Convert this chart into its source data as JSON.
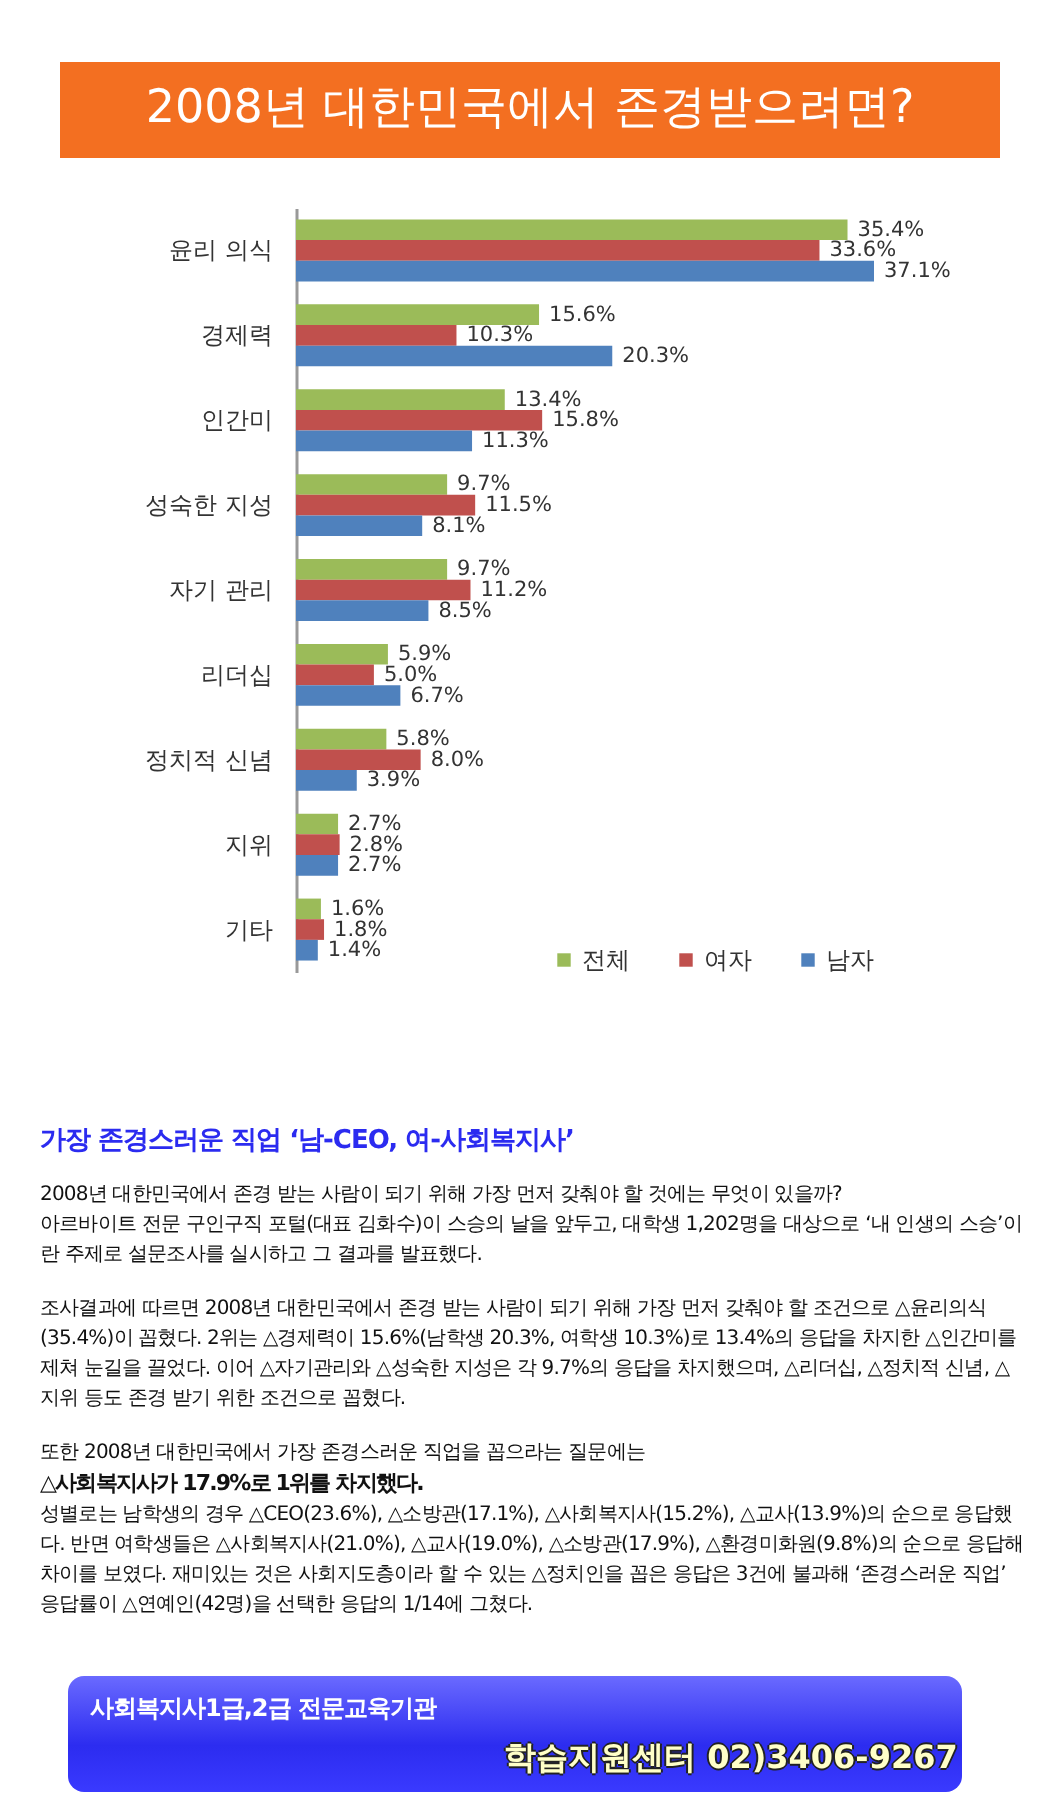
{
  "chart_data": {
    "type": "bar",
    "orientation": "horizontal",
    "title": "2008년 대한민국에서 존경받으려면?",
    "categories": [
      "윤리 의식",
      "경제력",
      "인간미",
      "성숙한 지성",
      "자기 관리",
      "리더십",
      "정치적 신념",
      "지위",
      "기타"
    ],
    "series": [
      {
        "name": "전체",
        "color": "#9bbb59",
        "values": [
          35.4,
          15.6,
          13.4,
          9.7,
          9.7,
          5.9,
          5.8,
          2.7,
          1.6
        ],
        "value_labels": [
          "35.4%",
          "15.6%",
          "13.4%",
          "9.7%",
          "9.7%",
          "5.9%",
          "5.8%",
          "2.7%",
          "1.6%"
        ]
      },
      {
        "name": "여자",
        "color": "#c0504d",
        "values": [
          33.6,
          10.3,
          15.8,
          11.5,
          11.2,
          5.0,
          8.0,
          2.8,
          1.8
        ],
        "value_labels": [
          "33.6%",
          "10.3%",
          "15.8%",
          "11.5%",
          "11.2%",
          "5.0%",
          "8.0%",
          "2.8%",
          "1.8%"
        ]
      },
      {
        "name": "남자",
        "color": "#4f81bd",
        "values": [
          37.1,
          20.3,
          11.3,
          8.1,
          8.5,
          6.7,
          3.9,
          2.7,
          1.4
        ],
        "value_labels": [
          "37.1%",
          "20.3%",
          "11.3%",
          "8.1%",
          "8.5%",
          "6.7%",
          "3.9%",
          "2.7%",
          "1.4%"
        ]
      }
    ],
    "legend": "bottom right",
    "tick_labels": "y",
    "annotations": [
      "가장 존경스러운 직업 ‘남-CEO, 여-사회복지사’",
      "2008년 대한민국에서 존경 받는 사람이 되기 위해 가장 먼저 갖춰야 할 것에는 무엇이 있을까?\n아르바이트 전문 구인구직 포털(대표 김화수)이 스승의 날을 앞두고, 대학생 1,202명을 대상으로 ‘내 인생의 스승’이란 주제로 설문조사를 실시하고 그 결과를 발표했다.",
      "조사결과에 따르면 2008년 대한민국에서 존경 받는 사람이 되기 위해 가장 먼저 갖춰야 할 조건으로 △윤리의식(35.4%)이 꼽혔다. 2위는 △경제력이 15.6%(남학생 20.3%, 여학생 10.3%)로 13.4%의 응답을 차지한 △인간미를 제쳐 눈길을 끌었다. 이어 △자기관리와 △성숙한 지성은 각 9.7%의 응답을 차지했으며, △리더십, △정치적 신념, △지위 등도 존경 받기 위한 조건으로 꼽혔다.",
      "또한 2008년 대한민국에서 가장 존경스러운 직업을 꼽으라는 질문에는",
      "△사회복지사가 17.9%로 1위를 차지했다.",
      "성별로는 남학생의 경우 △CEO(23.6%), △소방관(17.1%), △사회복지사(15.2%), △교사(13.9%)의 순으로 응답했다. 반면 여학생들은 △사회복지사(21.0%), △교사(19.0%), △소방관(17.9%), △환경미화원(9.8%)의 순으로 응답해 차이를 보였다. 재미있는 것은 사회지도층이라 할 수 있는 △정치인을 꼽은 응답은 3건에 불과해 ‘존경스러운 직업’ 응답률이 △연예인(42명)을 선택한 응답의 1/14에 그쳤다.",
      "사회복지사1급,2급 전문교육기관",
      "학습지원센터 02)3406-9267"
    ]
  }
}
